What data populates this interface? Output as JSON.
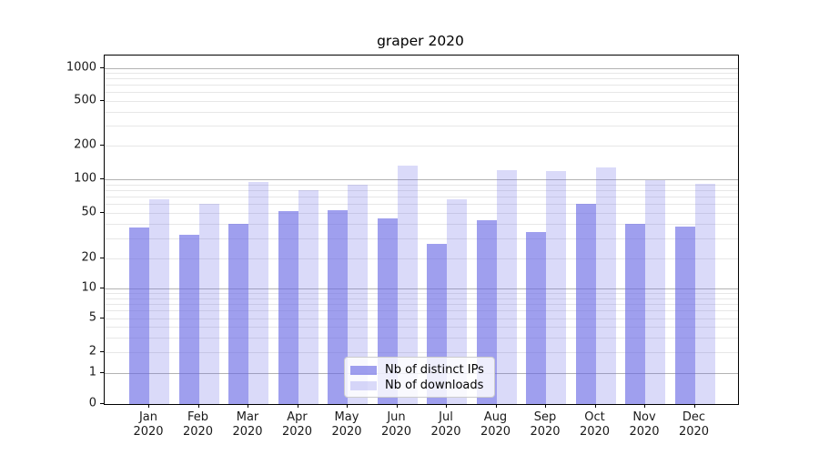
{
  "title": "graper 2020",
  "legend": {
    "items": [
      {
        "label": "Nb of distinct IPs",
        "color": "rgba(100,100,228,0.62)",
        "color_hex": "#a3a3ee"
      },
      {
        "label": "Nb of downloads",
        "color": "rgba(100,100,228,0.24)",
        "color_hex": "#dadaf8"
      }
    ]
  },
  "y_axis": {
    "ticks": [
      {
        "value": 0,
        "label": "0"
      },
      {
        "value": 1,
        "label": "1"
      },
      {
        "value": 2,
        "label": "2"
      },
      {
        "value": 5,
        "label": "5"
      },
      {
        "value": 10,
        "label": "10"
      },
      {
        "value": 20,
        "label": "20"
      },
      {
        "value": 50,
        "label": "50"
      },
      {
        "value": 100,
        "label": "100"
      },
      {
        "value": 200,
        "label": "200"
      },
      {
        "value": 500,
        "label": "500"
      },
      {
        "value": 1000,
        "label": "1000"
      }
    ],
    "major_grid_values": [
      1,
      10,
      100,
      1000
    ],
    "minor_grid_values": [
      2,
      3,
      4,
      5,
      6,
      7,
      8,
      9,
      20,
      30,
      40,
      50,
      60,
      70,
      80,
      90,
      200,
      300,
      400,
      500,
      600,
      700,
      800,
      900
    ]
  },
  "x_axis": {
    "months": [
      {
        "month": "Jan",
        "year": "2020"
      },
      {
        "month": "Feb",
        "year": "2020"
      },
      {
        "month": "Mar",
        "year": "2020"
      },
      {
        "month": "Apr",
        "year": "2020"
      },
      {
        "month": "May",
        "year": "2020"
      },
      {
        "month": "Jun",
        "year": "2020"
      },
      {
        "month": "Jul",
        "year": "2020"
      },
      {
        "month": "Aug",
        "year": "2020"
      },
      {
        "month": "Sep",
        "year": "2020"
      },
      {
        "month": "Oct",
        "year": "2020"
      },
      {
        "month": "Nov",
        "year": "2020"
      },
      {
        "month": "Dec",
        "year": "2020"
      }
    ]
  },
  "colors": {
    "grid_major": "#b3b3b3",
    "grid_minor": "#e7e7e7",
    "axis": "#000000",
    "legend_border": "#cccccc"
  },
  "chart_data": {
    "type": "bar",
    "title": "graper 2020",
    "categories": [
      "Jan 2020",
      "Feb 2020",
      "Mar 2020",
      "Apr 2020",
      "May 2020",
      "Jun 2020",
      "Jul 2020",
      "Aug 2020",
      "Sep 2020",
      "Oct 2020",
      "Nov 2020",
      "Dec 2020"
    ],
    "series": [
      {
        "name": "Nb of distinct IPs",
        "values": [
          37,
          32,
          40,
          52,
          53,
          45,
          27,
          43,
          34,
          60,
          40,
          38
        ]
      },
      {
        "name": "Nb of downloads",
        "values": [
          66,
          60,
          95,
          80,
          90,
          132,
          66,
          121,
          119,
          127,
          99,
          91
        ]
      }
    ],
    "xlabel": "",
    "ylabel": "",
    "yscale": "symlog-like",
    "yticks": [
      0,
      1,
      2,
      5,
      10,
      20,
      50,
      100,
      200,
      500,
      1000
    ],
    "ylim": [
      0,
      1300
    ],
    "grid": true,
    "legend_position": "lower center"
  }
}
